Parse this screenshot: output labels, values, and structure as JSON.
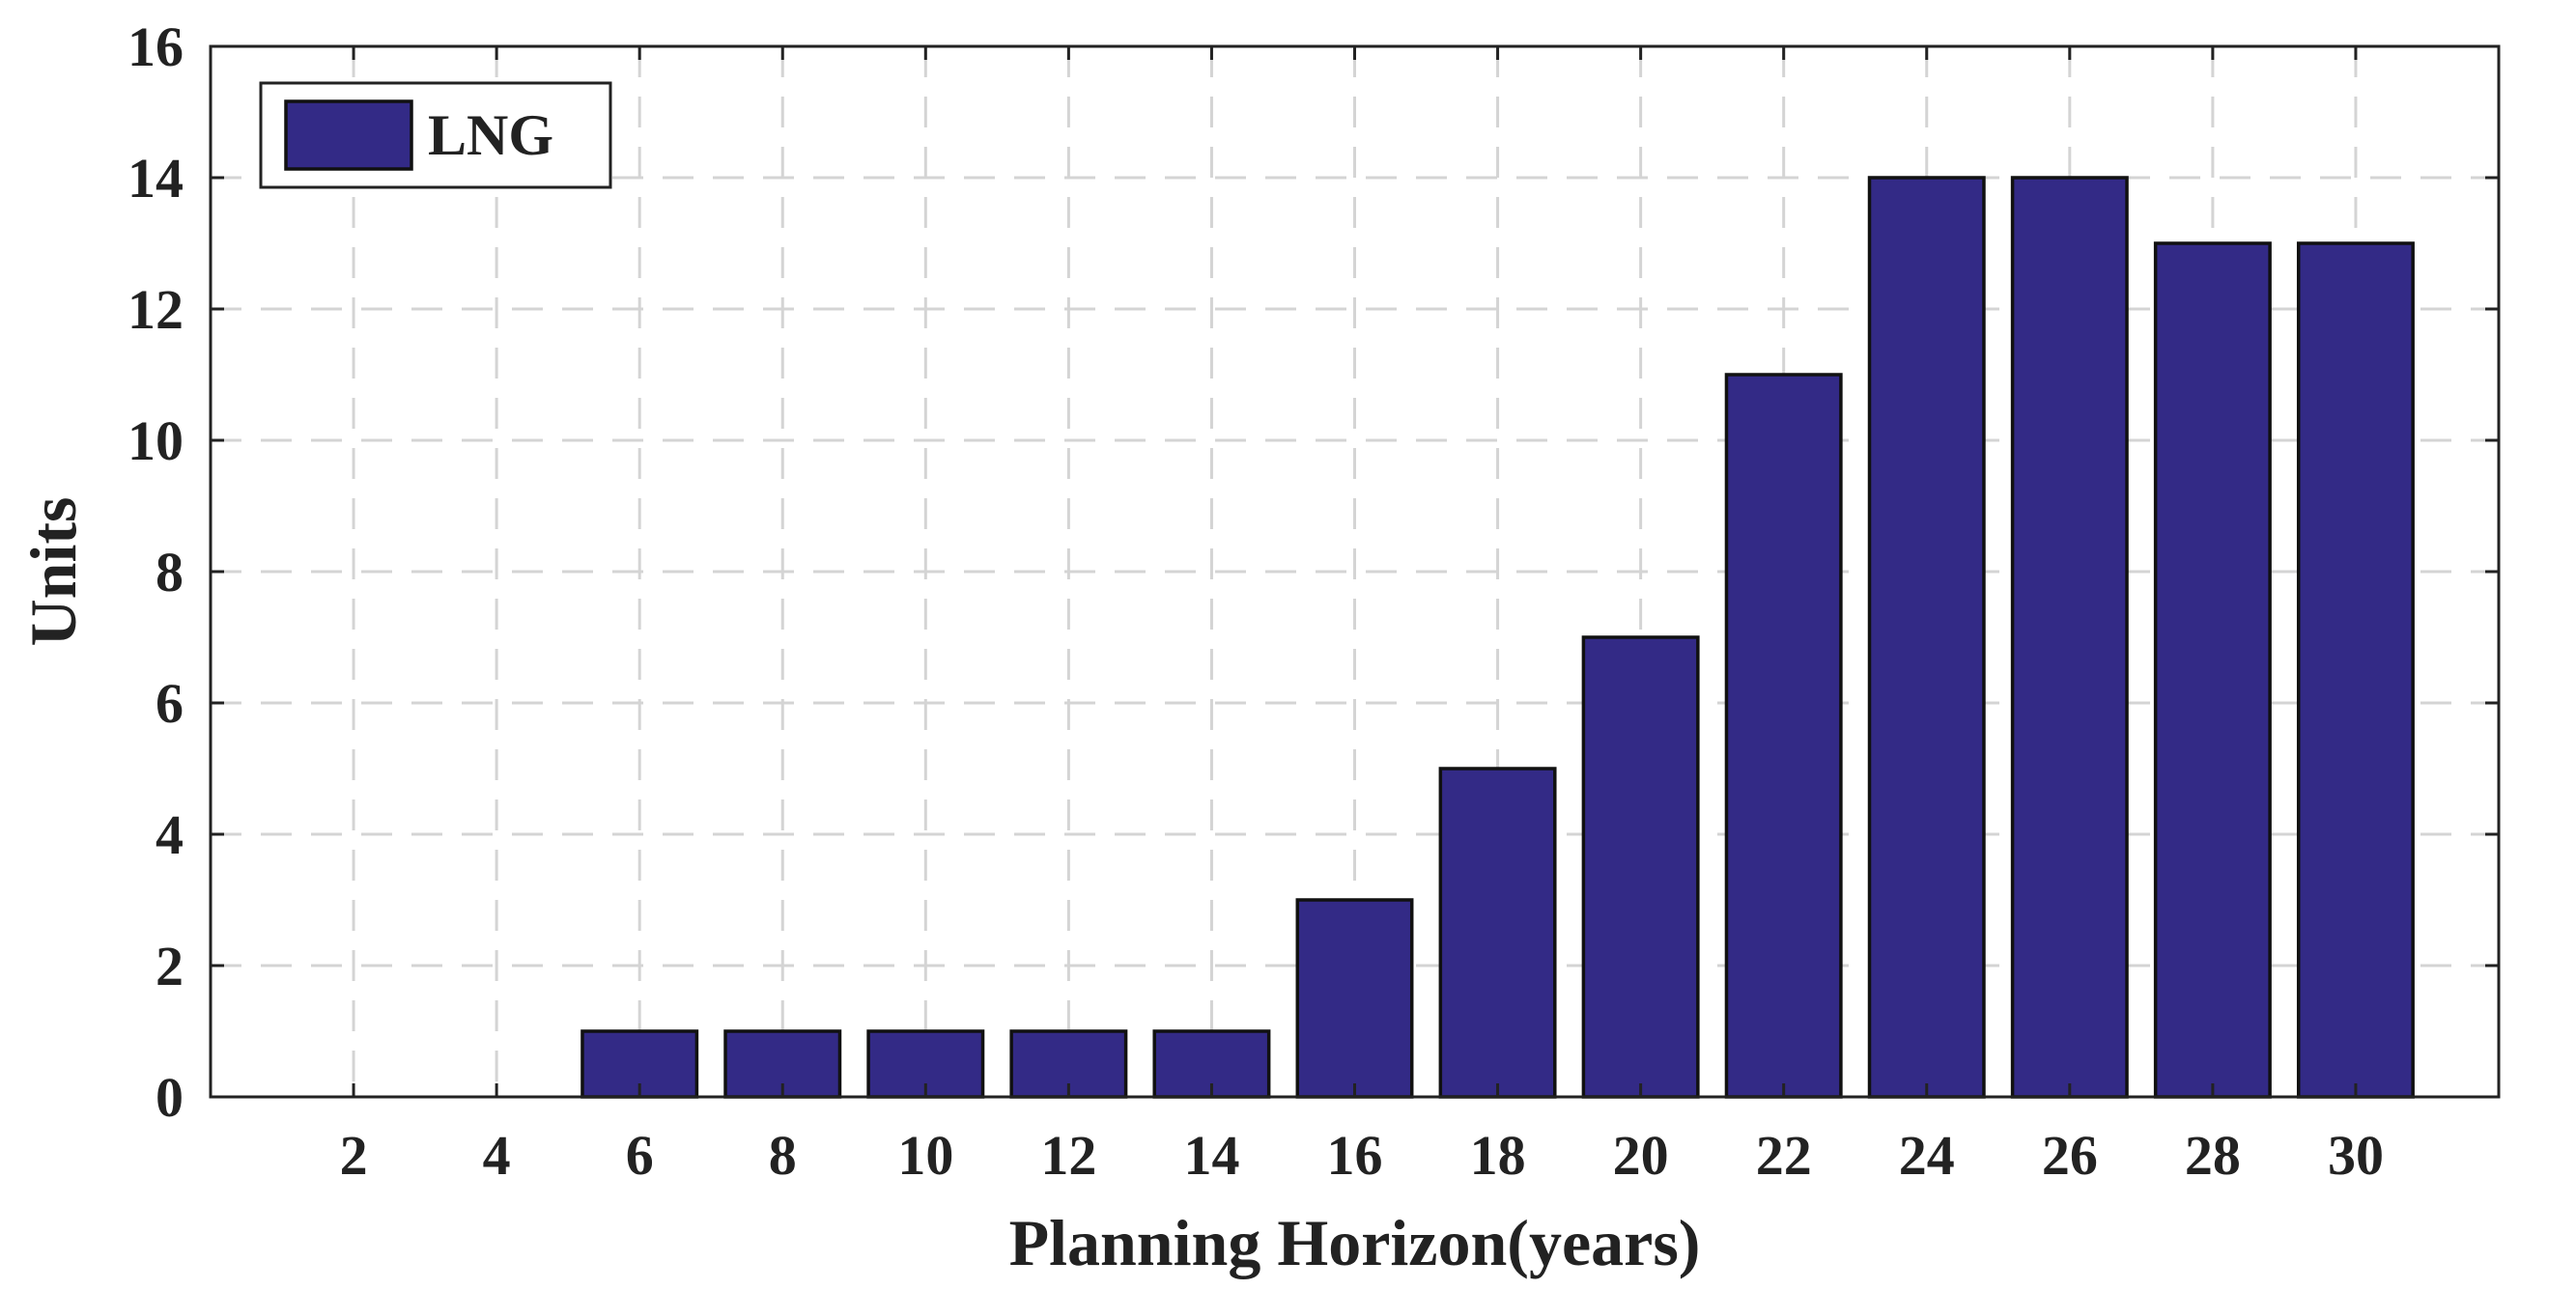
{
  "chart_data": {
    "type": "bar",
    "categories": [
      2,
      4,
      6,
      8,
      10,
      12,
      14,
      16,
      18,
      20,
      22,
      24,
      26,
      28,
      30
    ],
    "series": [
      {
        "name": "LNG",
        "values": [
          0,
          0,
          1,
          1,
          1,
          1,
          1,
          3,
          5,
          7,
          11,
          14,
          14,
          13,
          13
        ]
      }
    ],
    "xlabel": "Planning Horizon(years)",
    "ylabel": "Units",
    "ylim": [
      0,
      16
    ],
    "yticks": [
      0,
      2,
      4,
      6,
      8,
      10,
      12,
      14,
      16
    ],
    "xlim": [
      0,
      32
    ],
    "grid": true,
    "legend": {
      "position": "top-left"
    },
    "colors": {
      "bar": "#332a86"
    }
  }
}
